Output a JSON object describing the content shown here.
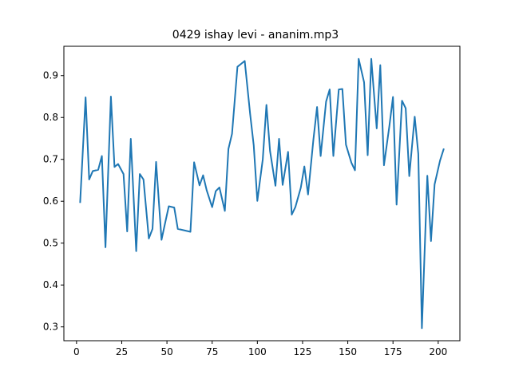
{
  "chart_data": {
    "type": "line",
    "title": "0429 ishay levi - ananim.mp3",
    "xlabel": "",
    "ylabel": "",
    "xlim": [
      -7,
      212
    ],
    "ylim": [
      0.267,
      0.97
    ],
    "xticks": [
      0,
      25,
      50,
      75,
      100,
      125,
      150,
      175,
      200
    ],
    "yticks": [
      0.3,
      0.4,
      0.5,
      0.6,
      0.7,
      0.8,
      0.9
    ],
    "grid": false,
    "color": "#1f77b4",
    "x": [
      2,
      5,
      7,
      9,
      12,
      14,
      16,
      19,
      21,
      23,
      26,
      28,
      30,
      33,
      35,
      37,
      40,
      42,
      44,
      47,
      49,
      51,
      54,
      56,
      58,
      63,
      65,
      68,
      70,
      72,
      75,
      77,
      79,
      82,
      84,
      86,
      89,
      91,
      93,
      96,
      98,
      100,
      103,
      105,
      107,
      110,
      112,
      114,
      117,
      119,
      121,
      124,
      126,
      128,
      131,
      133,
      135,
      138,
      140,
      142,
      145,
      147,
      149,
      152,
      154,
      156,
      159,
      161,
      163,
      166,
      168,
      170,
      173,
      175,
      177,
      180,
      182,
      184,
      187,
      189,
      191,
      194,
      196,
      198,
      201,
      203
    ],
    "y": [
      0.598,
      0.848,
      0.652,
      0.672,
      0.675,
      0.708,
      0.49,
      0.85,
      0.682,
      0.689,
      0.665,
      0.528,
      0.749,
      0.481,
      0.665,
      0.652,
      0.511,
      0.534,
      0.694,
      0.508,
      0.548,
      0.588,
      0.585,
      0.534,
      0.532,
      0.527,
      0.693,
      0.638,
      0.662,
      0.626,
      0.586,
      0.624,
      0.633,
      0.577,
      0.725,
      0.761,
      0.921,
      0.928,
      0.935,
      0.808,
      0.733,
      0.601,
      0.7,
      0.83,
      0.72,
      0.637,
      0.749,
      0.639,
      0.718,
      0.568,
      0.586,
      0.632,
      0.683,
      0.616,
      0.747,
      0.825,
      0.708,
      0.838,
      0.867,
      0.708,
      0.867,
      0.868,
      0.735,
      0.692,
      0.674,
      0.94,
      0.884,
      0.71,
      0.94,
      0.774,
      0.925,
      0.686,
      0.78,
      0.849,
      0.592,
      0.84,
      0.822,
      0.66,
      0.802,
      0.713,
      0.297,
      0.661,
      0.505,
      0.64,
      0.697,
      0.724
    ]
  }
}
